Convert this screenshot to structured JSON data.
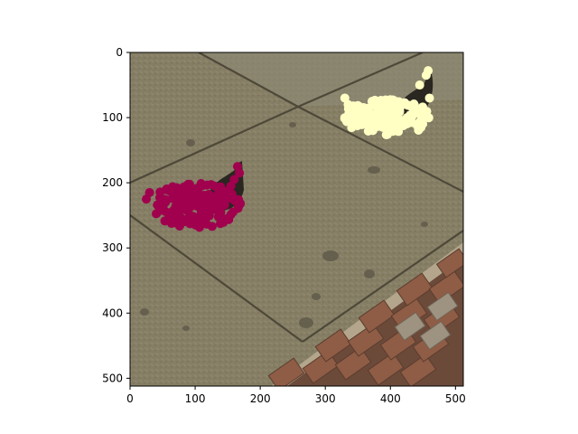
{
  "axes": {
    "x_ticks": [
      "0",
      "100",
      "200",
      "300",
      "400",
      "500"
    ],
    "y_ticks": [
      "0",
      "100",
      "200",
      "300",
      "400",
      "500"
    ]
  },
  "image": {
    "description_tags": [
      "pavement-photo",
      "granite-slabs",
      "cobblestones",
      "two-birds"
    ],
    "colors": {
      "slab": "#8a8266",
      "slab_dark": "#6f6852",
      "joint": "#5b5444",
      "cobble": "#8c5a44",
      "mortar": "#b7ab93"
    }
  },
  "overlays": {
    "left_cluster_color": "#a0004e",
    "right_cluster_color": "#ffffc4"
  }
}
